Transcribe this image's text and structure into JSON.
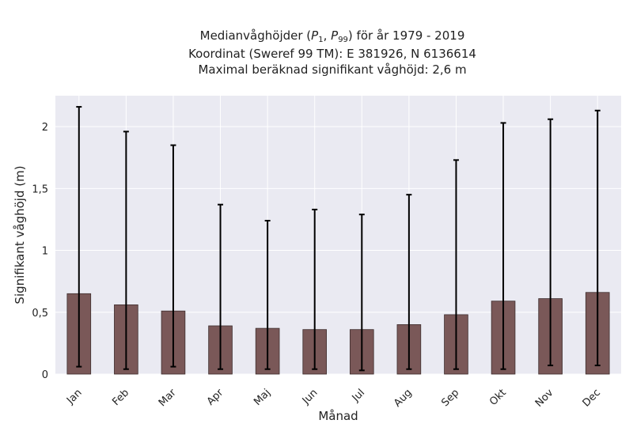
{
  "chart_data": {
    "type": "bar",
    "title_prefix": "Medianvåghöjder (",
    "title_p1": "P",
    "title_p1_sub": "1",
    "title_sep": ", ",
    "title_p2": "P",
    "title_p2_sub": "99",
    "title_suffix": ") för år 1979 - 2019",
    "subtitle": "Koordinat (Sweref 99 TM): E 381926, N 6136614",
    "subtitle2": "Maximal beräknad signifikant våghöjd: 2,6 m",
    "xlabel": "Månad",
    "ylabel": "Signifikant våghöjd (m)",
    "categories": [
      "Jan",
      "Feb",
      "Mar",
      "Apr",
      "Maj",
      "Jun",
      "Jul",
      "Aug",
      "Sep",
      "Okt",
      "Nov",
      "Dec"
    ],
    "values": [
      0.65,
      0.56,
      0.51,
      0.39,
      0.37,
      0.36,
      0.36,
      0.4,
      0.48,
      0.59,
      0.61,
      0.66
    ],
    "p1": [
      0.06,
      0.04,
      0.06,
      0.04,
      0.04,
      0.04,
      0.03,
      0.04,
      0.04,
      0.04,
      0.07,
      0.07
    ],
    "p99": [
      2.16,
      1.96,
      1.85,
      1.37,
      1.24,
      1.33,
      1.29,
      1.45,
      1.73,
      2.03,
      2.06,
      2.13
    ],
    "ylim": [
      0,
      2.25
    ],
    "yticks": [
      0,
      0.5,
      1,
      1.5,
      2
    ],
    "ytick_labels": [
      "0",
      "0,5",
      "1",
      "1,5",
      "2"
    ],
    "grid": true,
    "colors": {
      "bar": "#7a5858",
      "bar_edge": "#3e2e2e",
      "errorbar": "#000000",
      "axes_bg": "#eaeaf2",
      "grid": "#ffffff"
    }
  }
}
